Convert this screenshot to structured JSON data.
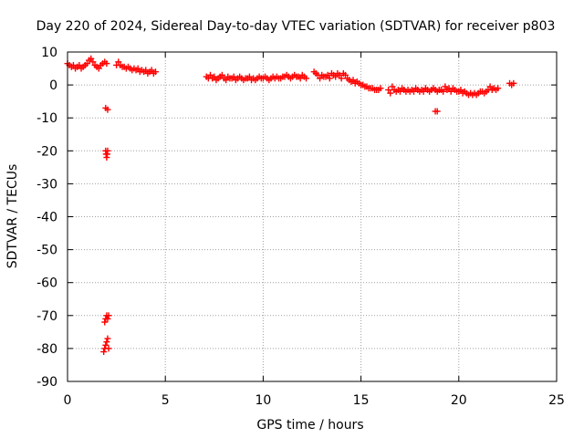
{
  "chart_data": {
    "type": "scatter",
    "title": "Day 220 of 2024, Sidereal Day-to-day VTEC variation (SDTVAR) for receiver p803",
    "xlabel": "GPS time / hours",
    "ylabel": "SDTVAR / TECUs",
    "xlim": [
      0,
      25
    ],
    "ylim": [
      -90,
      10
    ],
    "xticks": [
      0,
      5,
      10,
      15,
      20,
      25
    ],
    "yticks": [
      10,
      0,
      -10,
      -20,
      -30,
      -40,
      -50,
      -60,
      -70,
      -80,
      -90
    ],
    "grid": true,
    "colors": {
      "marker": "#ff0000",
      "grid": "#a0a0a0",
      "frame": "#000000"
    },
    "series": [
      {
        "name": "SDTVAR",
        "marker": "plus",
        "x": [
          0.0,
          0.1,
          0.2,
          0.3,
          0.4,
          0.5,
          0.6,
          0.7,
          0.8,
          0.9,
          1.0,
          1.1,
          1.2,
          1.3,
          1.4,
          1.5,
          1.6,
          1.7,
          1.8,
          1.9,
          2.0,
          1.95,
          2.05,
          1.95,
          1.97,
          2.0,
          2.03,
          2.05,
          1.9,
          1.95,
          2.0,
          2.05,
          2.1,
          1.85,
          1.9,
          1.95,
          2.0,
          2.05,
          2.1,
          2.5,
          2.6,
          2.7,
          2.8,
          2.9,
          3.0,
          3.1,
          3.2,
          3.3,
          3.4,
          3.5,
          3.6,
          3.7,
          3.8,
          3.9,
          4.0,
          4.1,
          4.2,
          4.3,
          4.4,
          4.5,
          7.1,
          7.2,
          7.3,
          7.4,
          7.5,
          7.6,
          7.7,
          7.8,
          7.9,
          8.0,
          8.1,
          8.2,
          8.3,
          8.4,
          8.5,
          8.6,
          8.7,
          8.8,
          8.9,
          9.0,
          9.1,
          9.2,
          9.3,
          9.4,
          9.5,
          9.6,
          9.7,
          9.8,
          9.9,
          10.0,
          10.1,
          10.2,
          10.3,
          10.4,
          10.5,
          10.6,
          10.7,
          10.8,
          10.9,
          11.0,
          11.1,
          11.2,
          11.3,
          11.4,
          11.5,
          11.6,
          11.7,
          11.8,
          11.9,
          12.0,
          12.1,
          12.2,
          12.6,
          12.7,
          12.8,
          12.9,
          13.0,
          13.1,
          13.2,
          13.3,
          13.4,
          13.5,
          13.6,
          13.7,
          13.8,
          13.9,
          14.0,
          14.1,
          14.2,
          14.3,
          14.4,
          14.5,
          14.6,
          14.7,
          14.8,
          14.9,
          15.0,
          15.1,
          15.2,
          15.3,
          15.4,
          15.5,
          15.6,
          15.7,
          15.8,
          15.9,
          16.0,
          16.4,
          16.5,
          16.6,
          16.7,
          16.8,
          16.9,
          17.0,
          17.1,
          17.2,
          17.3,
          17.4,
          17.5,
          17.6,
          17.7,
          17.8,
          17.9,
          18.0,
          18.1,
          18.2,
          18.3,
          18.4,
          18.5,
          18.6,
          18.7,
          18.8,
          18.9,
          19.0,
          18.8,
          18.9,
          19.0,
          19.1,
          19.2,
          19.3,
          19.4,
          19.5,
          19.6,
          19.7,
          19.8,
          19.9,
          20.0,
          20.1,
          20.2,
          20.3,
          20.4,
          20.5,
          20.6,
          20.7,
          20.8,
          20.9,
          21.0,
          21.1,
          21.2,
          21.3,
          21.4,
          21.5,
          21.6,
          21.7,
          21.8,
          21.9,
          22.0,
          22.6,
          22.7,
          22.8
        ],
        "y": [
          6.5,
          6.0,
          5.5,
          6.0,
          5.0,
          5.5,
          6.0,
          5.0,
          5.5,
          6.0,
          6.5,
          7.5,
          8.0,
          7.0,
          6.0,
          5.5,
          5.0,
          6.0,
          6.5,
          7.0,
          6.5,
          -7.0,
          -7.5,
          -20.0,
          -21.0,
          -22.0,
          -21.0,
          -20.0,
          -72.0,
          -71.0,
          -70.0,
          -71.0,
          -70.0,
          -81.0,
          -80.0,
          -79.0,
          -78.0,
          -77.0,
          -80.0,
          6.0,
          7.0,
          6.0,
          5.5,
          5.5,
          5.0,
          5.5,
          5.0,
          4.5,
          5.0,
          4.5,
          5.0,
          4.0,
          4.5,
          4.0,
          4.5,
          3.5,
          4.0,
          4.5,
          3.5,
          4.0,
          2.5,
          2.0,
          3.0,
          2.0,
          2.5,
          1.5,
          2.0,
          2.5,
          3.0,
          2.0,
          1.5,
          2.5,
          2.0,
          2.0,
          2.5,
          1.5,
          2.0,
          2.5,
          2.0,
          1.5,
          2.0,
          2.0,
          2.5,
          1.5,
          2.0,
          1.5,
          2.0,
          2.5,
          2.0,
          2.0,
          2.5,
          2.0,
          1.5,
          2.0,
          2.5,
          2.0,
          2.5,
          2.0,
          2.0,
          2.5,
          2.5,
          3.0,
          2.5,
          2.0,
          2.5,
          3.0,
          2.5,
          2.5,
          2.0,
          3.0,
          2.5,
          2.0,
          4.0,
          3.5,
          3.0,
          2.0,
          3.0,
          2.5,
          2.5,
          3.0,
          2.0,
          3.5,
          3.0,
          2.5,
          3.5,
          3.0,
          2.0,
          3.5,
          3.0,
          2.0,
          1.5,
          1.0,
          1.5,
          0.5,
          1.0,
          0.5,
          0.0,
          0.0,
          -0.5,
          -0.5,
          -1.0,
          -1.0,
          -1.0,
          -1.5,
          -1.5,
          -1.5,
          -1.0,
          -1.5,
          -2.5,
          -0.5,
          -1.5,
          -2.0,
          -1.5,
          -2.0,
          -1.0,
          -1.5,
          -2.0,
          -1.5,
          -2.0,
          -1.5,
          -2.0,
          -1.0,
          -1.5,
          -2.0,
          -1.5,
          -2.0,
          -1.0,
          -1.5,
          -2.0,
          -1.5,
          -1.0,
          -1.5,
          -2.0,
          -1.5,
          -8.0,
          -8.0,
          -1.5,
          -1.5,
          -2.0,
          -0.5,
          -1.5,
          -1.0,
          -2.0,
          -1.0,
          -1.5,
          -2.0,
          -2.0,
          -1.5,
          -2.5,
          -2.0,
          -2.5,
          -3.0,
          -2.5,
          -3.0,
          -2.5,
          -3.0,
          -2.5,
          -2.0,
          -2.0,
          -2.5,
          -2.0,
          -1.5,
          -0.5,
          -1.5,
          -1.0,
          -1.5,
          -1.0,
          0.5,
          0.0,
          0.5
        ]
      }
    ]
  }
}
